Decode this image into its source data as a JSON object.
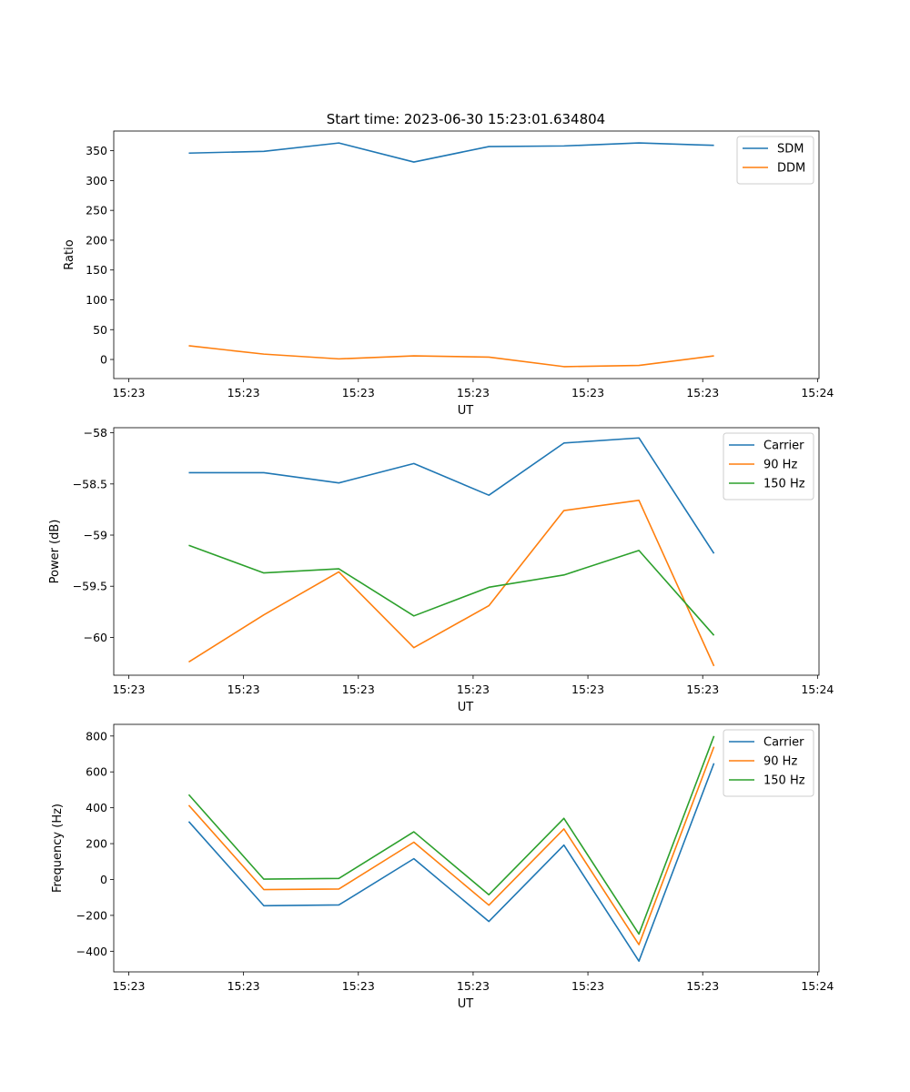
{
  "title": "Start time: 2023-06-30 15:23:01.634804",
  "colors": {
    "c0": "#1f77b4",
    "c1": "#ff7f0e",
    "c2": "#2ca02c"
  },
  "chart_data": [
    {
      "type": "line",
      "xlabel": "UT",
      "ylabel": "Ratio",
      "ylim": [
        -32,
        383
      ],
      "yticks": [
        0,
        50,
        100,
        150,
        200,
        250,
        300,
        350
      ],
      "xtick_labels": [
        "15:23",
        "15:23",
        "15:23",
        "15:23",
        "15:23",
        "15:23",
        "15:24"
      ],
      "legend": "top-right",
      "x": [
        1,
        2,
        3,
        4,
        5,
        6,
        7,
        8
      ],
      "series": [
        {
          "name": "SDM",
          "color": "#1f77b4",
          "values": [
            346,
            349,
            363,
            331,
            357,
            358,
            363,
            359
          ]
        },
        {
          "name": "DDM",
          "color": "#ff7f0e",
          "values": [
            23,
            9,
            1,
            6,
            4,
            -12,
            -10,
            6
          ]
        }
      ]
    },
    {
      "type": "line",
      "xlabel": "UT",
      "ylabel": "Power (dB)",
      "ylim": [
        -60.37,
        -57.95
      ],
      "yticks": [
        -60.0,
        -59.5,
        -59.0,
        -58.5,
        -58.0
      ],
      "xtick_labels": [
        "15:23",
        "15:23",
        "15:23",
        "15:23",
        "15:23",
        "15:23",
        "15:24"
      ],
      "legend": "top-right",
      "x": [
        1,
        2,
        3,
        4,
        5,
        6,
        7,
        8
      ],
      "series": [
        {
          "name": "Carrier",
          "color": "#1f77b4",
          "values": [
            -58.39,
            -58.39,
            -58.49,
            -58.3,
            -58.61,
            -58.1,
            -58.05,
            -59.18
          ]
        },
        {
          "name": "90 Hz",
          "color": "#ff7f0e",
          "values": [
            -60.24,
            -59.78,
            -59.36,
            -60.1,
            -59.69,
            -58.76,
            -58.66,
            -60.28
          ]
        },
        {
          "name": "150 Hz",
          "color": "#2ca02c",
          "values": [
            -59.1,
            -59.37,
            -59.33,
            -59.79,
            -59.51,
            -59.39,
            -59.15,
            -59.98
          ]
        }
      ]
    },
    {
      "type": "line",
      "xlabel": "UT",
      "ylabel": "Frequency (Hz)",
      "ylim": [
        -515,
        865
      ],
      "yticks": [
        -400,
        -200,
        0,
        200,
        400,
        600,
        800
      ],
      "xtick_labels": [
        "15:23",
        "15:23",
        "15:23",
        "15:23",
        "15:23",
        "15:23",
        "15:24"
      ],
      "legend": "top-right",
      "x": [
        1,
        2,
        3,
        4,
        5,
        6,
        7,
        8
      ],
      "series": [
        {
          "name": "Carrier",
          "color": "#1f77b4",
          "values": [
            323,
            -146,
            -142,
            116,
            -234,
            192,
            -455,
            648
          ]
        },
        {
          "name": "90 Hz",
          "color": "#ff7f0e",
          "values": [
            414,
            -56,
            -53,
            208,
            -143,
            282,
            -363,
            740
          ]
        },
        {
          "name": "150 Hz",
          "color": "#2ca02c",
          "values": [
            473,
            2,
            6,
            266,
            -85,
            341,
            -304,
            800
          ]
        }
      ]
    }
  ]
}
